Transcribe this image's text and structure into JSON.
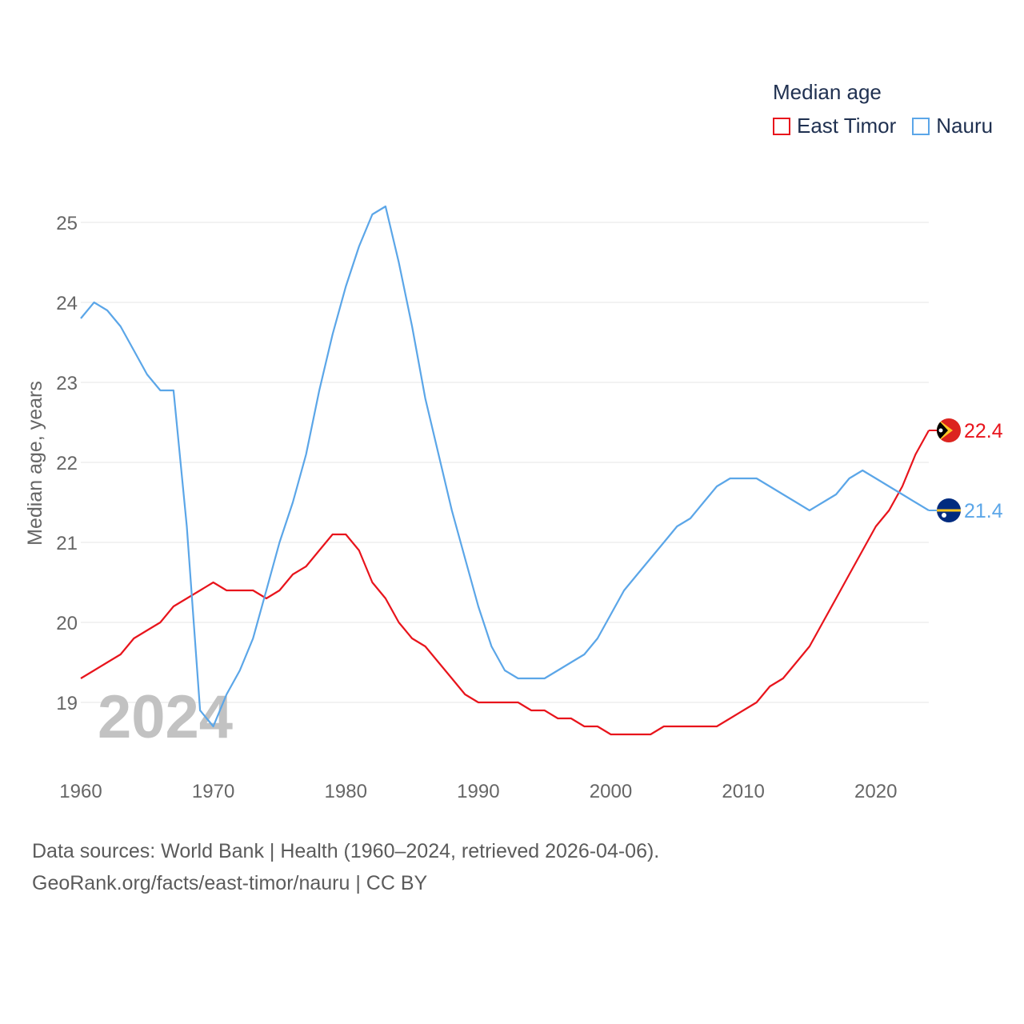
{
  "chart_data": {
    "type": "line",
    "legend_title": "Median age",
    "ylabel": "Median age, years",
    "year_label": "2024",
    "xlim": [
      1960,
      2024
    ],
    "ylim": [
      18.3,
      25.4
    ],
    "x_ticks": [
      1960,
      1970,
      1980,
      1990,
      2000,
      2010,
      2020
    ],
    "y_ticks": [
      19,
      20,
      21,
      22,
      23,
      24,
      25
    ],
    "x": [
      1960,
      1961,
      1962,
      1963,
      1964,
      1965,
      1966,
      1967,
      1968,
      1969,
      1970,
      1971,
      1972,
      1973,
      1974,
      1975,
      1976,
      1977,
      1978,
      1979,
      1980,
      1981,
      1982,
      1983,
      1984,
      1985,
      1986,
      1987,
      1988,
      1989,
      1990,
      1991,
      1992,
      1993,
      1994,
      1995,
      1996,
      1997,
      1998,
      1999,
      2000,
      2001,
      2002,
      2003,
      2004,
      2005,
      2006,
      2007,
      2008,
      2009,
      2010,
      2011,
      2012,
      2013,
      2014,
      2015,
      2016,
      2017,
      2018,
      2019,
      2020,
      2021,
      2022,
      2023,
      2024
    ],
    "series": [
      {
        "name": "East Timor",
        "color": "#e8141c",
        "end_label": "22.4",
        "values": [
          19.3,
          19.4,
          19.5,
          19.6,
          19.8,
          19.9,
          20.0,
          20.2,
          20.3,
          20.4,
          20.5,
          20.4,
          20.4,
          20.4,
          20.3,
          20.4,
          20.6,
          20.7,
          20.9,
          21.1,
          21.1,
          20.9,
          20.5,
          20.3,
          20.0,
          19.8,
          19.7,
          19.5,
          19.3,
          19.1,
          19.0,
          19.0,
          19.0,
          19.0,
          18.9,
          18.9,
          18.8,
          18.8,
          18.7,
          18.7,
          18.6,
          18.6,
          18.6,
          18.6,
          18.7,
          18.7,
          18.7,
          18.7,
          18.7,
          18.8,
          18.9,
          19.0,
          19.2,
          19.3,
          19.5,
          19.7,
          20.0,
          20.3,
          20.6,
          20.9,
          21.2,
          21.4,
          21.7,
          22.1,
          22.4
        ]
      },
      {
        "name": "Nauru",
        "color": "#5ba6e8",
        "end_label": "21.4",
        "values": [
          23.8,
          24.0,
          23.9,
          23.7,
          23.4,
          23.1,
          22.9,
          22.9,
          21.2,
          18.9,
          18.7,
          19.1,
          19.4,
          19.8,
          20.4,
          21.0,
          21.5,
          22.1,
          22.9,
          23.6,
          24.2,
          24.7,
          25.1,
          25.2,
          24.5,
          23.7,
          22.8,
          22.1,
          21.4,
          20.8,
          20.2,
          19.7,
          19.4,
          19.3,
          19.3,
          19.3,
          19.4,
          19.5,
          19.6,
          19.8,
          20.1,
          20.4,
          20.6,
          20.8,
          21.0,
          21.2,
          21.3,
          21.5,
          21.7,
          21.8,
          21.8,
          21.8,
          21.7,
          21.6,
          21.5,
          21.4,
          21.5,
          21.6,
          21.8,
          21.9,
          21.8,
          21.7,
          21.6,
          21.5,
          21.4
        ]
      }
    ]
  },
  "source": {
    "line1": "Data sources: World Bank | Health (1960–2024, retrieved 2026-04-06).",
    "line2": "GeoRank.org/facts/east-timor/nauru | CC BY"
  }
}
